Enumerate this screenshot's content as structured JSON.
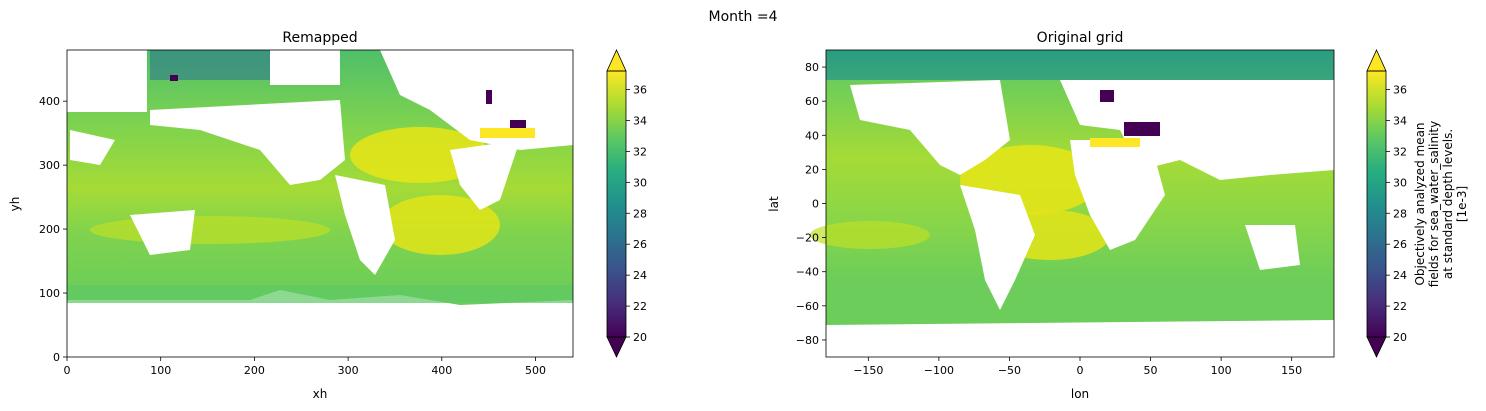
{
  "suptitle": "Month =4",
  "chart_data": [
    {
      "type": "heatmap",
      "title": "Remapped",
      "xlabel": "xh",
      "ylabel": "yh",
      "xlim": [
        0,
        540
      ],
      "ylim": [
        0,
        480
      ],
      "xticks": [
        0,
        100,
        200,
        300,
        400,
        500
      ],
      "yticks": [
        0,
        100,
        200,
        300,
        400
      ],
      "colorbar": {
        "label": "",
        "ticks": [
          20,
          22,
          24,
          26,
          28,
          30,
          32,
          34,
          36
        ],
        "range": [
          20,
          37.2
        ],
        "extend": "both",
        "colormap": "viridis"
      }
    },
    {
      "type": "heatmap",
      "title": "Original grid",
      "xlabel": "lon",
      "ylabel": "lat",
      "xlim": [
        -180,
        180
      ],
      "ylim": [
        -90,
        90
      ],
      "xticks": [
        -150,
        -100,
        -50,
        0,
        50,
        100,
        150
      ],
      "yticks": [
        -80,
        -60,
        -40,
        -20,
        0,
        20,
        40,
        60,
        80
      ],
      "colorbar": {
        "label_lines": [
          "Objectively analyzed mean",
          "fields for sea_water_salinity",
          "at standard depth levels.",
          "[1e-3]"
        ],
        "ticks": [
          20,
          22,
          24,
          26,
          28,
          30,
          32,
          34,
          36
        ],
        "range": [
          20,
          37.2
        ],
        "extend": "both",
        "colormap": "viridis"
      }
    }
  ],
  "colors": {
    "ocean_typical": "#5ec962",
    "ocean_high": "#fde725",
    "ocean_low": "#440154",
    "land": "#ffffff"
  }
}
